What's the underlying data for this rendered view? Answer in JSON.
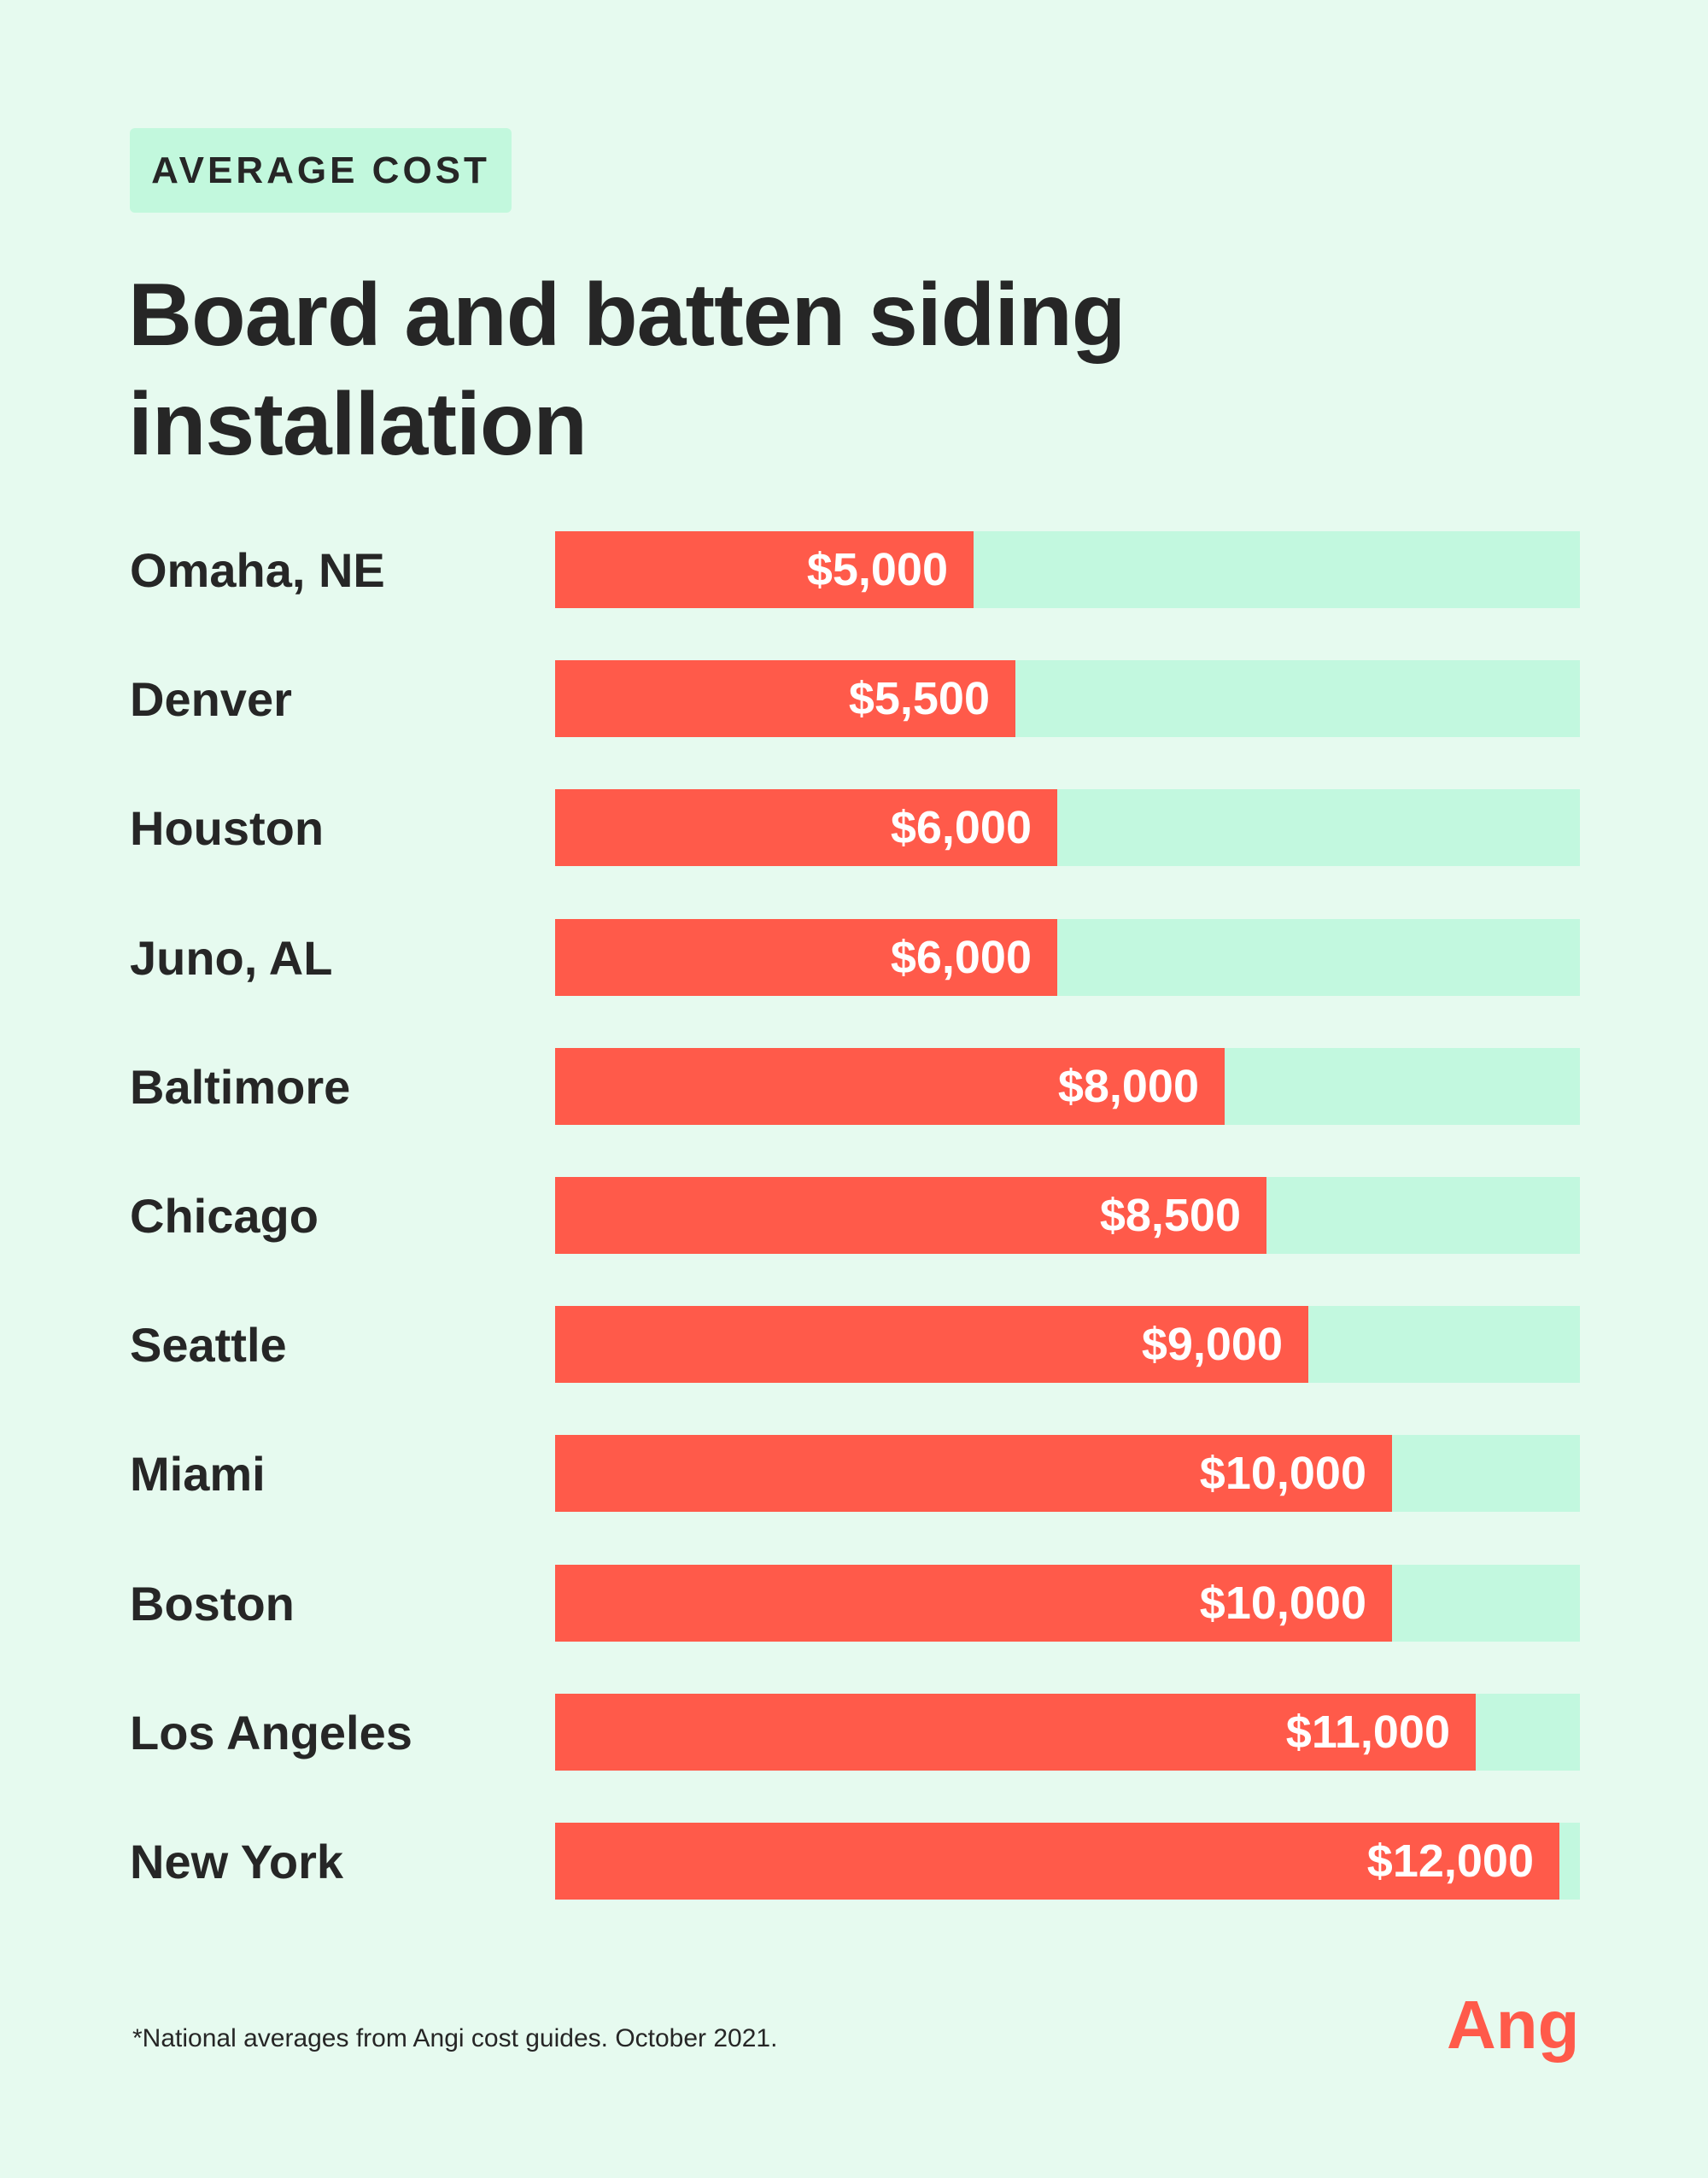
{
  "badge": "AVERAGE COST",
  "title": "Board and batten siding installation",
  "footnote": "*National averages from Angi cost guides. October 2021.",
  "logo_text": "Angi",
  "colors": {
    "background": "#e6faef",
    "bar": "#ff5a4a",
    "track": "#c2f8df",
    "badge": "#c2f8dd",
    "logo": "#ff5a4a"
  },
  "chart_data": {
    "type": "bar",
    "orientation": "horizontal",
    "title": "Board and batten siding installation",
    "xlim": [
      0,
      12000
    ],
    "categories": [
      "Omaha, NE",
      "Denver",
      "Houston",
      "Juno, AL",
      "Baltimore",
      "Chicago",
      "Seattle",
      "Miami",
      "Boston",
      "Los Angeles",
      "New York"
    ],
    "values": [
      5000,
      5500,
      6000,
      6000,
      8000,
      8500,
      9000,
      10000,
      10000,
      11000,
      12000
    ],
    "labels": [
      "$5,000",
      "$5,500",
      "$6,000",
      "$6,000",
      "$8,000",
      "$8,500",
      "$9,000",
      "$10,000",
      "$10,000",
      "$11,000",
      "$12,000"
    ]
  }
}
